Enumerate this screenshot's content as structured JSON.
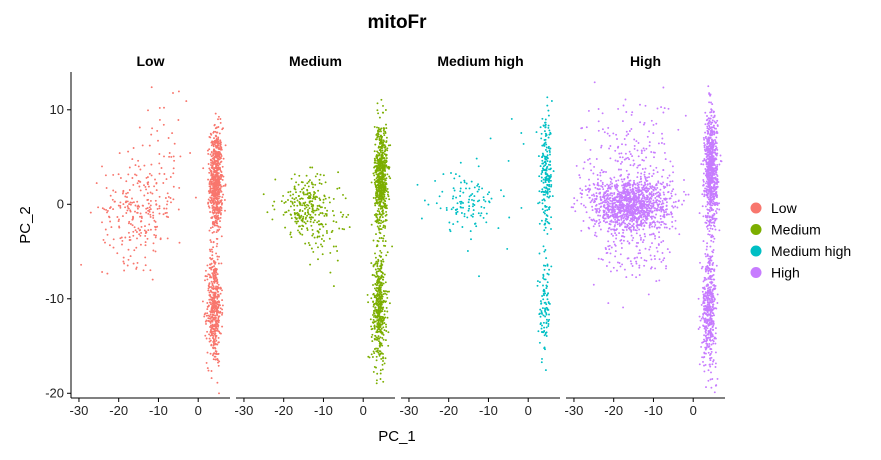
{
  "chart_data": {
    "type": "scatter",
    "title": "mitoFr",
    "xlabel": "PC_1",
    "ylabel": "PC_2",
    "xlim": [
      -32,
      8
    ],
    "ylim": [
      -20.5,
      14
    ],
    "xticks": [
      -30,
      -20,
      -10,
      0
    ],
    "yticks": [
      10,
      0,
      -10,
      -20
    ],
    "grid": false,
    "legend_position": "right",
    "facets": [
      "Low",
      "Medium",
      "Medium high",
      "High"
    ],
    "series": [
      {
        "name": "Low",
        "color": "#F8766D",
        "clusters": [
          {
            "cx": 4.5,
            "cy": 2.5,
            "sx": 0.8,
            "sy": 2.8,
            "n": 650
          },
          {
            "cx": 4.0,
            "cy": -11,
            "sx": 0.9,
            "sy": 3.0,
            "n": 450
          },
          {
            "cx": -15,
            "cy": -0.5,
            "sx": 4.5,
            "sy": 2.8,
            "n": 260
          },
          {
            "cx": -8,
            "cy": 6,
            "sx": 3.0,
            "sy": 3.5,
            "n": 40
          }
        ]
      },
      {
        "name": "Medium",
        "color": "#7CAE00",
        "clusters": [
          {
            "cx": 4.5,
            "cy": 3.0,
            "sx": 0.8,
            "sy": 2.8,
            "n": 650
          },
          {
            "cx": 4.0,
            "cy": -11,
            "sx": 0.9,
            "sy": 3.0,
            "n": 450
          },
          {
            "cx": -14,
            "cy": -0.2,
            "sx": 4.0,
            "sy": 1.6,
            "n": 260
          },
          {
            "cx": -10,
            "cy": -4,
            "sx": 3.0,
            "sy": 1.5,
            "n": 40
          }
        ]
      },
      {
        "name": "Medium high",
        "color": "#00BFC4",
        "clusters": [
          {
            "cx": 4.5,
            "cy": 3.0,
            "sx": 0.8,
            "sy": 2.8,
            "n": 200
          },
          {
            "cx": 4.2,
            "cy": -11,
            "sx": 0.7,
            "sy": 2.5,
            "n": 100
          },
          {
            "cx": -16,
            "cy": 0.2,
            "sx": 4.0,
            "sy": 1.5,
            "n": 110
          },
          {
            "cx": -5,
            "cy": 4,
            "sx": 3.0,
            "sy": 5.0,
            "n": 15
          }
        ]
      },
      {
        "name": "High",
        "color": "#C77CFF",
        "clusters": [
          {
            "cx": 4.5,
            "cy": 3.5,
            "sx": 0.8,
            "sy": 3.0,
            "n": 800
          },
          {
            "cx": 4.0,
            "cy": -11,
            "sx": 0.9,
            "sy": 3.0,
            "n": 450
          },
          {
            "cx": -16,
            "cy": 0.0,
            "sx": 5.0,
            "sy": 1.4,
            "n": 1200
          },
          {
            "cx": -16,
            "cy": 4,
            "sx": 6.0,
            "sy": 3.5,
            "n": 220
          },
          {
            "cx": -14,
            "cy": -4,
            "sx": 5.0,
            "sy": 2.5,
            "n": 150
          }
        ]
      }
    ]
  }
}
